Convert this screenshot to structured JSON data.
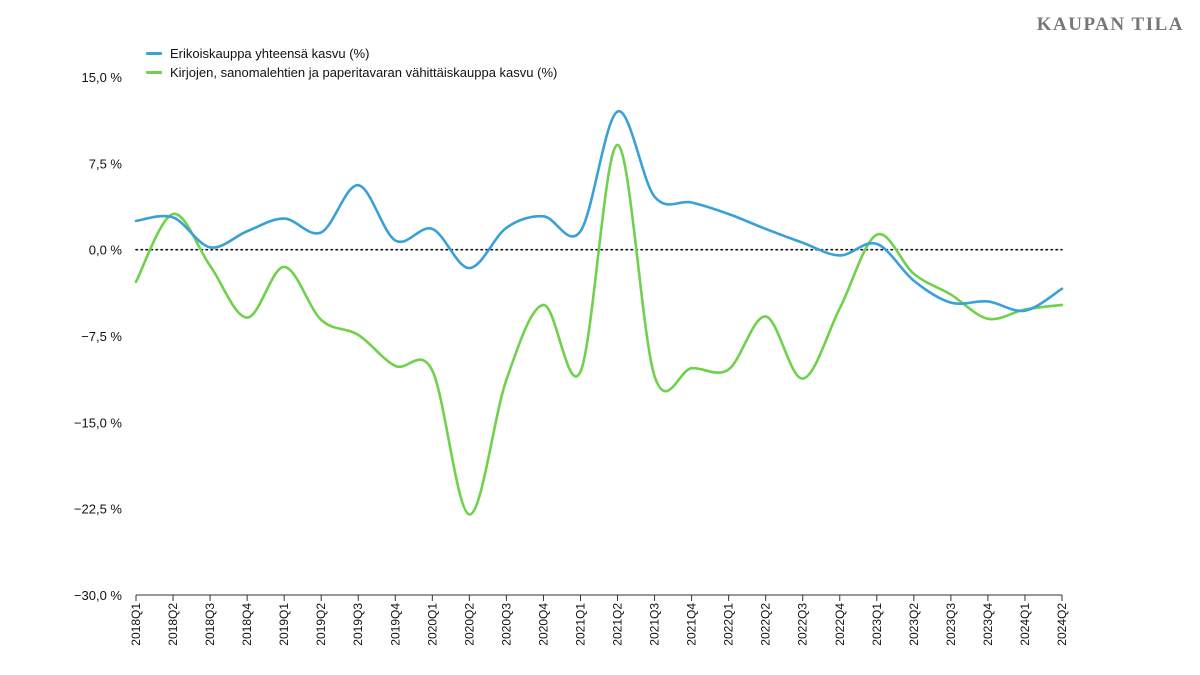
{
  "brand": "KAUPAN TILA",
  "chart_data": {
    "type": "line",
    "x": [
      "2018Q1",
      "2018Q2",
      "2018Q3",
      "2018Q4",
      "2019Q1",
      "2019Q2",
      "2019Q3",
      "2019Q4",
      "2020Q1",
      "2020Q2",
      "2020Q3",
      "2020Q4",
      "2021Q1",
      "2021Q2",
      "2021Q3",
      "2021Q4",
      "2022Q1",
      "2022Q2",
      "2022Q3",
      "2022Q4",
      "2023Q1",
      "2023Q2",
      "2023Q3",
      "2023Q4",
      "2024Q1",
      "2024Q2"
    ],
    "series": [
      {
        "name": "Erikoiskauppa yhteensä kasvu (%)",
        "color": "#3aa0d8",
        "values": [
          2.5,
          2.8,
          0.2,
          1.6,
          2.7,
          1.5,
          5.6,
          0.8,
          1.8,
          -1.6,
          1.9,
          2.9,
          1.6,
          12.0,
          4.6,
          4.1,
          3.1,
          1.8,
          0.6,
          -0.5,
          0.5,
          -2.7,
          -4.6,
          -4.5,
          -5.3,
          -3.4
        ]
      },
      {
        "name": "Kirjojen, sanomalehtien ja paperitavaran vähittäiskauppa kasvu (%)",
        "color": "#6fd14c",
        "values": [
          -2.8,
          3.1,
          -1.4,
          -5.9,
          -1.5,
          -6.1,
          -7.4,
          -10.1,
          -10.5,
          -23.0,
          -11.3,
          -4.8,
          -10.6,
          9.1,
          -11.0,
          -10.3,
          -10.4,
          -5.8,
          -11.2,
          -5.1,
          1.3,
          -2.1,
          -3.9,
          -6.0,
          -5.2,
          -4.8
        ]
      }
    ],
    "yticks": [
      "15,0 %",
      "7,5 %",
      "0,0 %",
      "−7,5 %",
      "−15,0 %",
      "−22,5 %",
      "−30,0 %"
    ],
    "ylim": [
      -30,
      15
    ],
    "zero_line": "dotted",
    "grid": false,
    "legend_position": "top-left",
    "title": "",
    "xlabel": "",
    "ylabel": ""
  }
}
